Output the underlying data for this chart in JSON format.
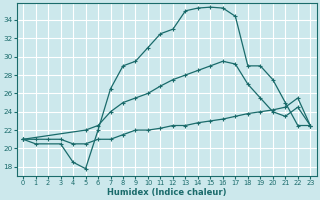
{
  "xlabel": "Humidex (Indice chaleur)",
  "bg_color": "#cce8ec",
  "grid_color": "#ffffff",
  "line_color": "#1a6b6b",
  "xlim": [
    -0.5,
    23.5
  ],
  "ylim": [
    17.0,
    35.8
  ],
  "yticks": [
    18,
    20,
    22,
    24,
    26,
    28,
    30,
    32,
    34
  ],
  "xticks": [
    0,
    1,
    2,
    3,
    4,
    5,
    6,
    7,
    8,
    9,
    10,
    11,
    12,
    13,
    14,
    15,
    16,
    17,
    18,
    19,
    20,
    21,
    22,
    23
  ],
  "line1_x": [
    0,
    1,
    3,
    4,
    5,
    6,
    7,
    8,
    9,
    10,
    11,
    12,
    13,
    14,
    15,
    16,
    17,
    18,
    19,
    20,
    21,
    22,
    23
  ],
  "line1_y": [
    21.0,
    20.5,
    20.5,
    18.5,
    17.8,
    22.0,
    26.5,
    29.0,
    29.5,
    31.0,
    32.5,
    33.0,
    35.0,
    35.3,
    35.4,
    35.3,
    34.4,
    29.0,
    29.0,
    27.5,
    25.0,
    22.5,
    22.5
  ],
  "line2_x": [
    0,
    5,
    6,
    7,
    8,
    9,
    10,
    11,
    12,
    13,
    14,
    15,
    16,
    17,
    18,
    19,
    20,
    21,
    22,
    23
  ],
  "line2_y": [
    21.0,
    22.0,
    22.5,
    24.0,
    25.0,
    25.5,
    26.0,
    26.8,
    27.5,
    28.0,
    28.5,
    29.0,
    29.5,
    29.2,
    27.0,
    25.5,
    24.0,
    23.5,
    24.5,
    22.5
  ],
  "line3_x": [
    0,
    1,
    2,
    3,
    4,
    5,
    6,
    7,
    8,
    9,
    10,
    11,
    12,
    13,
    14,
    15,
    16,
    17,
    18,
    19,
    20,
    21,
    22,
    23
  ],
  "line3_y": [
    21.0,
    21.0,
    21.0,
    21.0,
    20.5,
    20.5,
    21.0,
    21.0,
    21.5,
    22.0,
    22.0,
    22.2,
    22.5,
    22.5,
    22.8,
    23.0,
    23.2,
    23.5,
    23.8,
    24.0,
    24.2,
    24.5,
    25.5,
    22.5
  ]
}
